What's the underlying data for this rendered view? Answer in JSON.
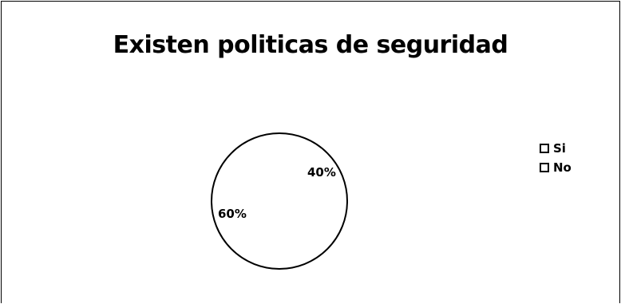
{
  "chart_data": {
    "type": "pie",
    "title": "Existen politicas de seguridad",
    "categories": [
      "Si",
      "No"
    ],
    "values": [
      40,
      60
    ],
    "data_labels": [
      "40%",
      "60%"
    ],
    "legend": {
      "placement": "right",
      "entries": [
        "Si",
        "No"
      ]
    },
    "colors": [
      "#ffffff",
      "#ffffff"
    ],
    "outline_color": "#000000"
  }
}
